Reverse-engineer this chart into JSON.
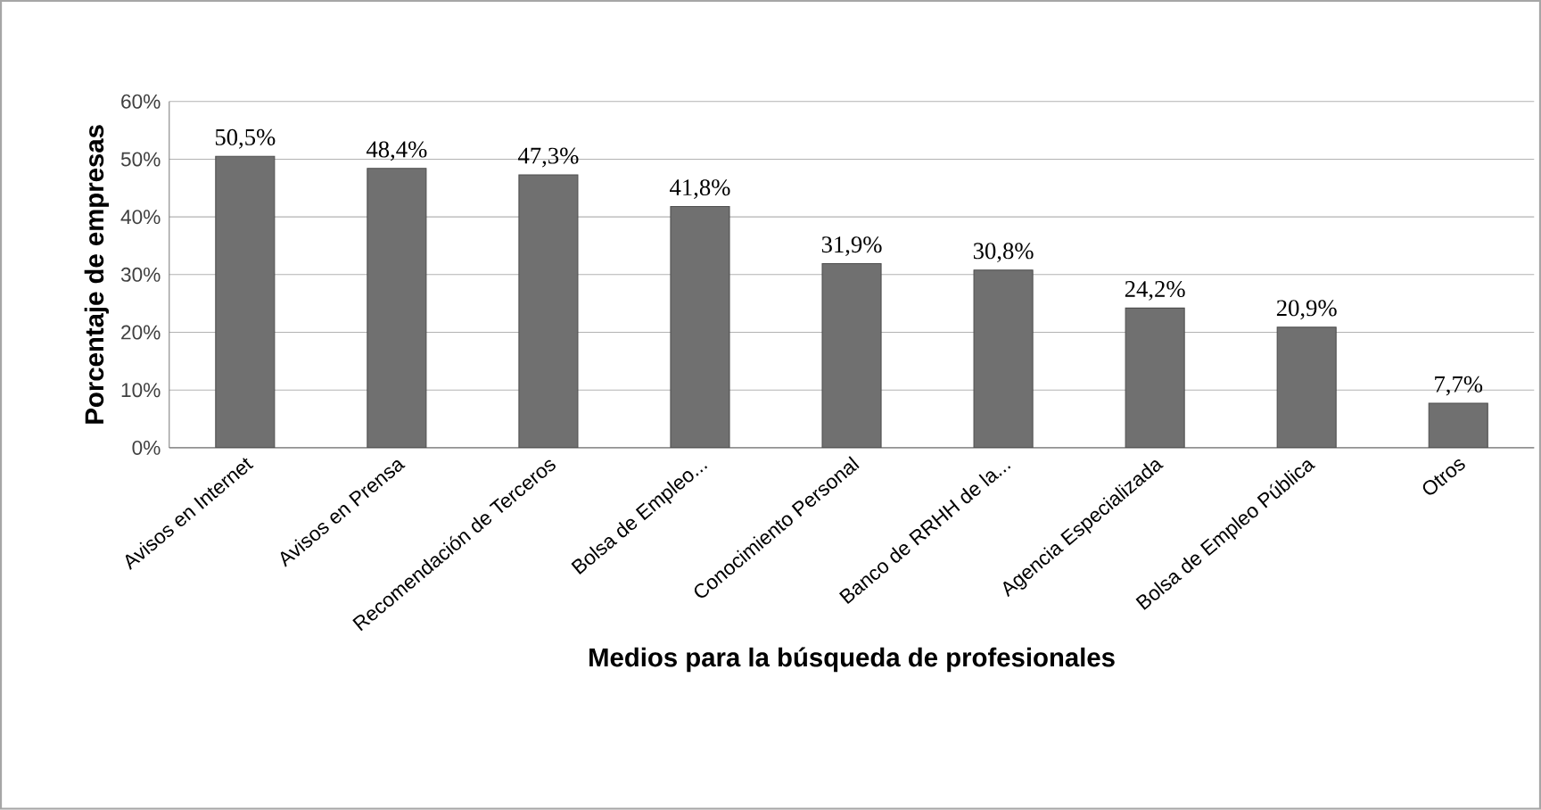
{
  "chart_data": {
    "type": "bar",
    "xlabel": "Medios para la búsqueda de profesionales",
    "ylabel": "Porcentaje de empresas",
    "categories": [
      "Avisos en Internet",
      "Avisos en Prensa",
      "Recomendación de Terceros",
      "Bolsa de Empleo...",
      "Conocimiento Personal",
      "Banco de RRHH de la...",
      "Agencia Especializada",
      "Bolsa de Empleo Pública",
      "Otros"
    ],
    "values": [
      50.5,
      48.4,
      47.3,
      41.8,
      31.9,
      30.8,
      24.2,
      20.9,
      7.7
    ],
    "value_labels": [
      "50,5%",
      "48,4%",
      "47,3%",
      "41,8%",
      "31,9%",
      "30,8%",
      "24,2%",
      "20,9%",
      "7,7%"
    ],
    "color": "#707070",
    "ylim": [
      0,
      60
    ],
    "yticks": [
      {
        "value": 0,
        "label": "0%"
      },
      {
        "value": 10,
        "label": "10%"
      },
      {
        "value": 20,
        "label": "20%"
      },
      {
        "value": 30,
        "label": "30%"
      },
      {
        "value": 40,
        "label": "40%"
      },
      {
        "value": 50,
        "label": "50%"
      },
      {
        "value": 60,
        "label": "60%"
      }
    ],
    "grid": "y"
  }
}
